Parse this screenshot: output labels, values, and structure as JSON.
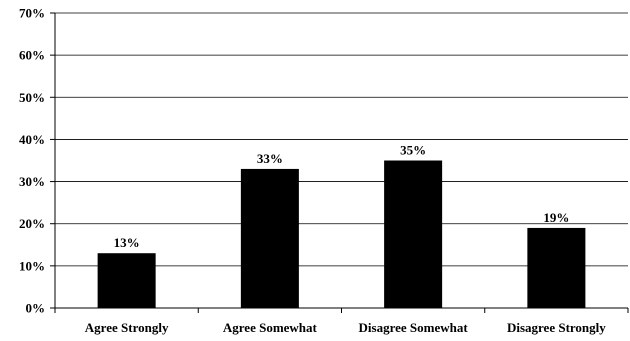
{
  "chart_data": {
    "type": "bar",
    "categories": [
      "Agree Strongly",
      "Agree Somewhat",
      "Disagree Somewhat",
      "Disagree Strongly"
    ],
    "values": [
      13,
      33,
      35,
      19
    ],
    "data_labels": [
      "13%",
      "33%",
      "35%",
      "19%"
    ],
    "yticks": [
      "0%",
      "10%",
      "20%",
      "30%",
      "40%",
      "50%",
      "60%",
      "70%"
    ],
    "ylim": [
      0,
      70
    ],
    "grid": true,
    "bar_color": "#000000",
    "title": "",
    "xlabel": "",
    "ylabel": ""
  }
}
